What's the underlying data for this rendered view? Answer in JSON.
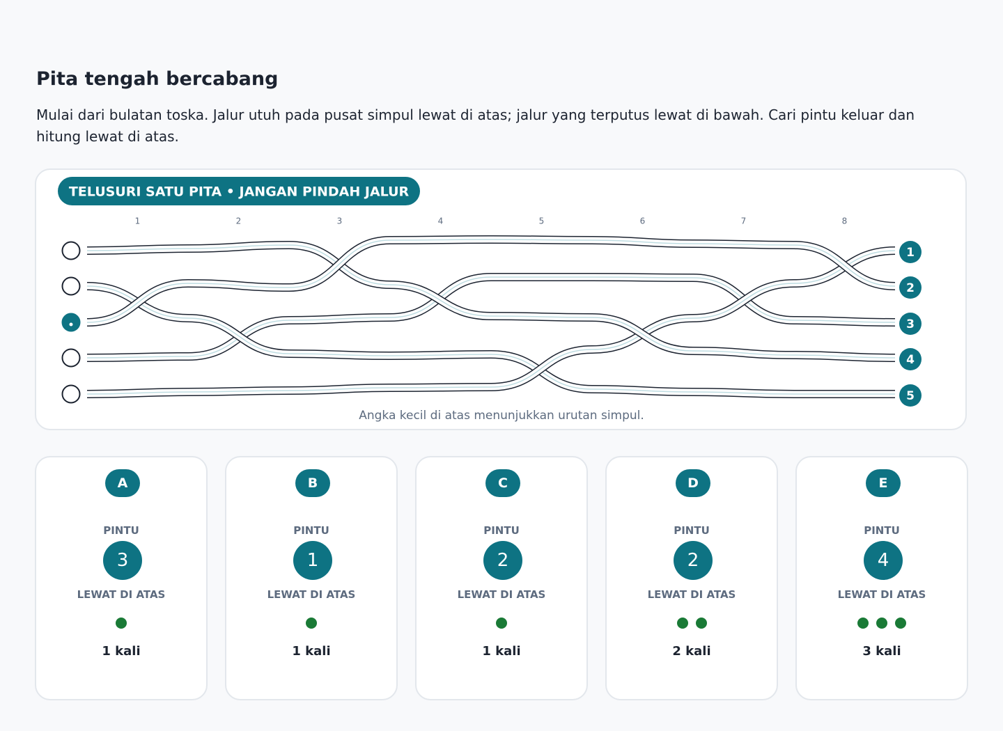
{
  "header": {
    "title": "Pita tengah bercabang",
    "instructions": "Mulai dari bulatan toska. Jalur utuh pada pusat simpul lewat di atas; jalur yang terputus lewat di bawah. Cari pintu keluar dan hitung lewat di atas."
  },
  "diagram": {
    "badge": "TELUSURI SATU PITA • JANGAN PINDAH JALUR",
    "columns": [
      "1",
      "2",
      "3",
      "4",
      "5",
      "6",
      "7",
      "8"
    ],
    "exits": [
      "1",
      "2",
      "3",
      "4",
      "5"
    ],
    "caption": "Angka kecil di atas menunjukkan urutan simpul."
  },
  "options": [
    {
      "letter": "A",
      "gate_label": "PINTU",
      "gate": "3",
      "over_label": "LEWAT DI ATAS",
      "over_count": 1,
      "over_text": "1 kali"
    },
    {
      "letter": "B",
      "gate_label": "PINTU",
      "gate": "1",
      "over_label": "LEWAT DI ATAS",
      "over_count": 1,
      "over_text": "1 kali"
    },
    {
      "letter": "C",
      "gate_label": "PINTU",
      "gate": "2",
      "over_label": "LEWAT DI ATAS",
      "over_count": 1,
      "over_text": "1 kali"
    },
    {
      "letter": "D",
      "gate_label": "PINTU",
      "gate": "2",
      "over_label": "LEWAT DI ATAS",
      "over_count": 2,
      "over_text": "2 kali"
    },
    {
      "letter": "E",
      "gate_label": "PINTU",
      "gate": "4",
      "over_label": "LEWAT DI ATAS",
      "over_count": 3,
      "over_text": "3 kali"
    }
  ]
}
